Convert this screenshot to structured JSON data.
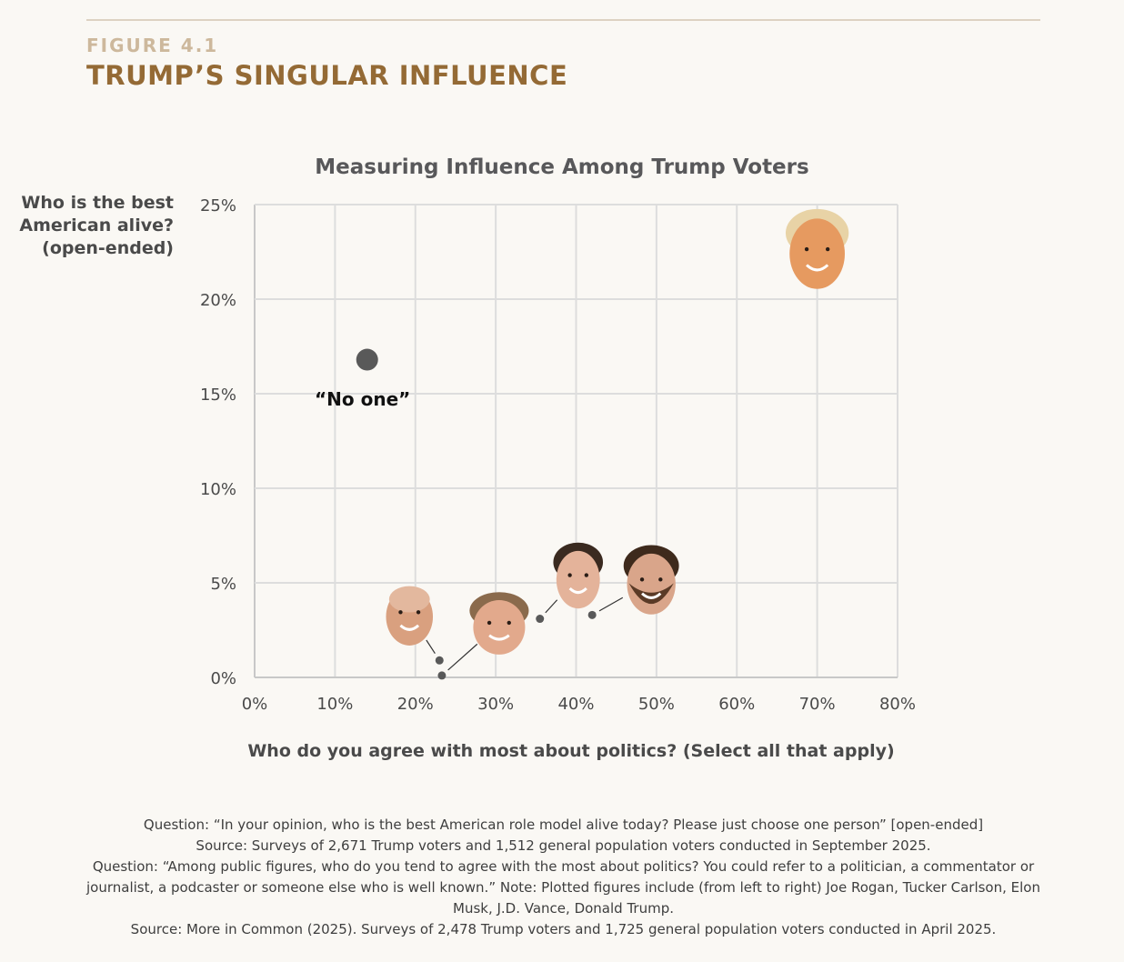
{
  "header": {
    "figure_label": "FIGURE 4.1",
    "figure_title": "TRUMP’S SINGULAR INFLUENCE"
  },
  "chart_data": {
    "type": "scatter",
    "title": "Measuring Influence Among Trump Voters",
    "xlabel": "Who do you agree with most about politics? (Select all that apply)",
    "ylabel_lines": [
      "Who is the best",
      "American alive?",
      "(open-ended)"
    ],
    "xlim": [
      0,
      80
    ],
    "ylim": [
      0,
      25
    ],
    "x_ticks": [
      "0%",
      "10%",
      "20%",
      "30%",
      "40%",
      "50%",
      "60%",
      "70%",
      "80%"
    ],
    "y_ticks": [
      "0%",
      "5%",
      "10%",
      "15%",
      "20%",
      "25%"
    ],
    "grid": true,
    "points": [
      {
        "label": "“No one”",
        "x": 14,
        "y": 16.8,
        "marker": "dot"
      },
      {
        "label": "Joe Rogan",
        "x": 23,
        "y": 0.9,
        "marker": "face"
      },
      {
        "label": "Tucker Carlson",
        "x": 23.3,
        "y": 0.1,
        "marker": "face"
      },
      {
        "label": "Elon Musk",
        "x": 35.5,
        "y": 3.1,
        "marker": "face"
      },
      {
        "label": "J.D. Vance",
        "x": 42,
        "y": 3.3,
        "marker": "face"
      },
      {
        "label": "Donald Trump",
        "x": 70,
        "y": 21.2,
        "marker": "face"
      }
    ],
    "colors": {
      "dot": "#595959",
      "grid": "#dddddd",
      "axis": "#c8c8c8"
    }
  },
  "notes": [
    "Question: “In your opinion, who is the best American role model alive today? Please just choose one person” [open-ended]",
    "Source: Surveys of 2,671 Trump voters and 1,512 general population voters conducted in September 2025.",
    "Question: “Among public figures, who do you tend to agree with the most about politics? You could refer to a politician, a commentator or journalist, a podcaster or someone else who is well known.” Note: Plotted figures include (from left to right) Joe Rogan, Tucker Carlson, Elon Musk, J.D. Vance, Donald Trump.",
    "Source: More in Common (2025). Surveys of 2,478 Trump voters and 1,725 general population voters conducted in April 2025."
  ]
}
